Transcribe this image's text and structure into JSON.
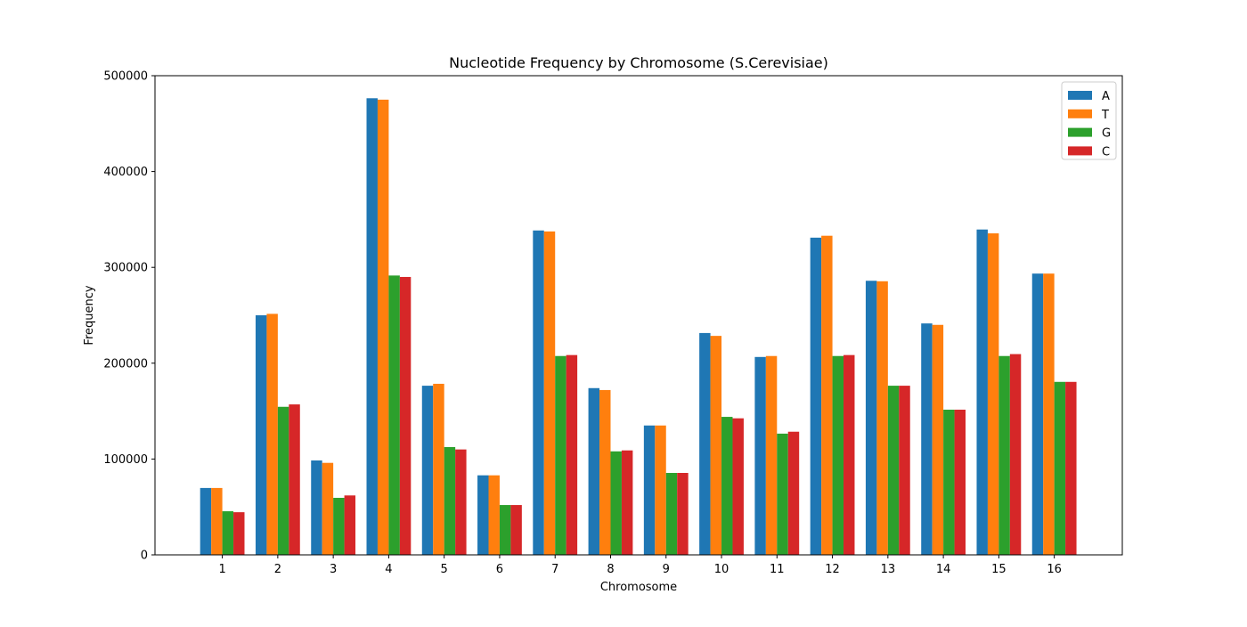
{
  "chart_data": {
    "type": "bar",
    "title": "Nucleotide Frequency by Chromosome (S.Cerevisiae)",
    "xlabel": "Chromosome",
    "ylabel": "Frequency",
    "ylim": [
      0,
      500000
    ],
    "yticks": [
      0,
      100000,
      200000,
      300000,
      400000,
      500000
    ],
    "ytick_labels": [
      "0",
      "100000",
      "200000",
      "300000",
      "400000",
      "500000"
    ],
    "categories": [
      "1",
      "2",
      "3",
      "4",
      "5",
      "6",
      "7",
      "8",
      "9",
      "10",
      "11",
      "12",
      "13",
      "14",
      "15",
      "16"
    ],
    "grid": false,
    "legend_position": "top-right",
    "series": [
      {
        "name": "A",
        "color": "#1f77b4",
        "values": [
          69800,
          250000,
          98500,
          476500,
          176500,
          83000,
          338500,
          174000,
          135000,
          231500,
          206500,
          331000,
          286000,
          241500,
          339500,
          293500
        ]
      },
      {
        "name": "T",
        "color": "#ff7f0e",
        "values": [
          69800,
          251500,
          96000,
          475000,
          178500,
          83000,
          337500,
          172000,
          135000,
          228500,
          207500,
          333000,
          285500,
          240000,
          335500,
          293500
        ]
      },
      {
        "name": "G",
        "color": "#2ca02c",
        "values": [
          45500,
          154500,
          59500,
          291500,
          112500,
          52000,
          207500,
          108000,
          85500,
          144000,
          126500,
          207500,
          176500,
          151500,
          207500,
          180500
        ]
      },
      {
        "name": "C",
        "color": "#d62728",
        "values": [
          44500,
          157000,
          62000,
          290000,
          110000,
          52000,
          208500,
          109000,
          85500,
          142500,
          128500,
          208500,
          176500,
          151500,
          209500,
          180500
        ]
      }
    ]
  }
}
